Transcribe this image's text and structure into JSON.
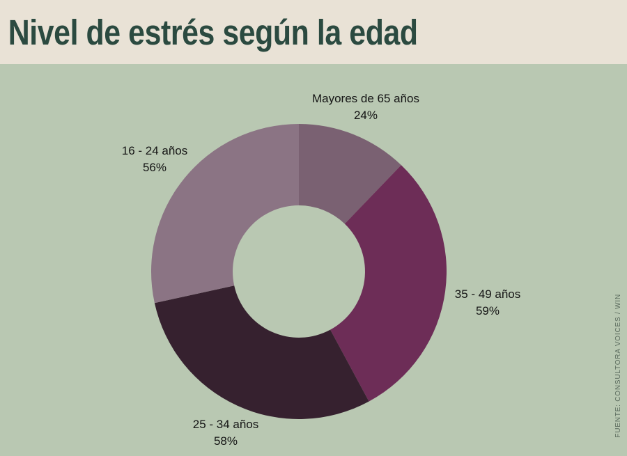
{
  "title": "Nivel de estrés según la edad",
  "source_note": "FUENTE: CONSULTORA VOICES / WIN",
  "colors": {
    "header_bg": "#e9e2d6",
    "chart_bg": "#b9c8b2",
    "title_text": "#2b4a40",
    "label_text": "#141414",
    "source_text": "#5a6a5d"
  },
  "chart_data": {
    "type": "pie",
    "variant": "donut",
    "title": "Nivel de estrés según la edad",
    "unit": "%",
    "direction": "clockwise",
    "start_angle": "12 o'clock",
    "inner_radius_ratio": 0.448,
    "legend_position": "labels around chart",
    "segments": [
      {
        "label": "Mayores de 65 años",
        "value": 24,
        "display": "24%",
        "color": "#7a6172"
      },
      {
        "label": "35 - 49 años",
        "value": 59,
        "display": "59%",
        "color": "#6d2d57"
      },
      {
        "label": "25 - 34 años",
        "value": 58,
        "display": "58%",
        "color": "#36212f"
      },
      {
        "label": "16 - 24 años",
        "value": 56,
        "display": "56%",
        "color": "#8b7484"
      }
    ]
  }
}
